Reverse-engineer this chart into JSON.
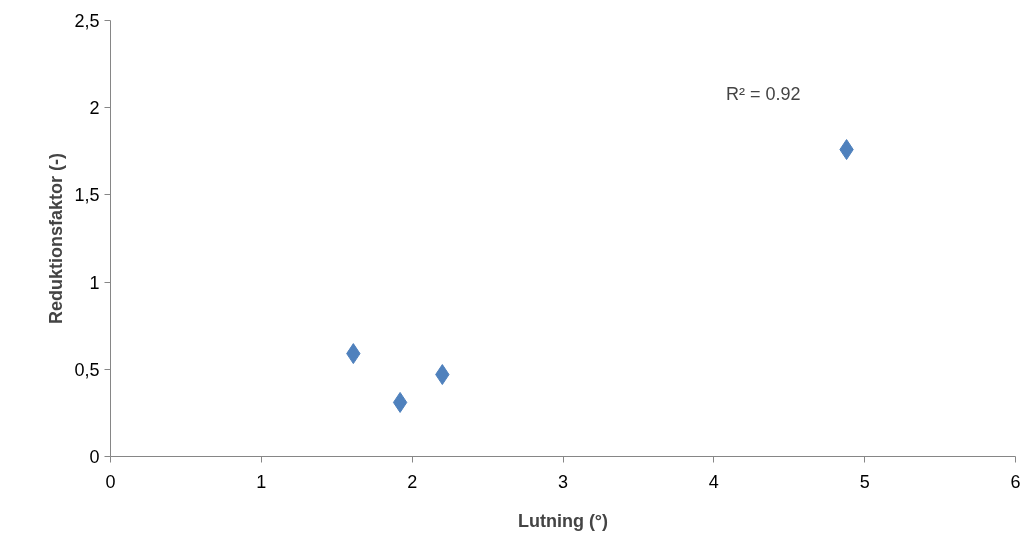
{
  "chart_data": {
    "type": "scatter",
    "xlabel": "Lutning (°)",
    "ylabel": "Reduktionsfaktor (-)",
    "x": [
      1.61,
      1.92,
      2.2,
      4.88
    ],
    "series": [
      {
        "color": "#4f81bd",
        "values": [
          0.59,
          0.31,
          0.47,
          1.76
        ]
      }
    ],
    "xlim": [
      0,
      6
    ],
    "xticks": [
      0,
      1,
      2,
      3,
      4,
      5,
      6
    ],
    "ylim": [
      0,
      2.5
    ],
    "yticks": [
      0,
      {
        "value": 0.5,
        "label": "0,5"
      },
      1,
      {
        "value": 1.5,
        "label": "1,5"
      },
      2,
      {
        "value": 2.5,
        "label": "2,5"
      }
    ],
    "annotations": [
      "R² = 0.92"
    ],
    "marker": "diamond",
    "grid": false
  }
}
